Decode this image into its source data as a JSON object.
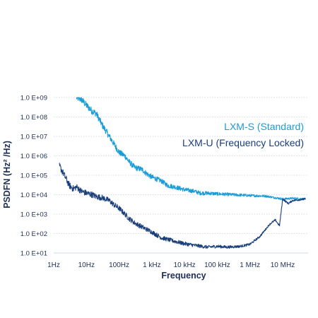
{
  "chart_data": {
    "type": "line",
    "x_scale": "log",
    "y_scale": "log",
    "xlabel": "Frequency",
    "ylabel": "PSDFN (Hz² /Hz)",
    "xlim": [
      1,
      60000000
    ],
    "ylim": [
      10,
      1000000000
    ],
    "x_ticks": [
      {
        "value": 1,
        "label": "1Hz"
      },
      {
        "value": 10,
        "label": "10Hz"
      },
      {
        "value": 100,
        "label": "100Hz"
      },
      {
        "value": 1000,
        "label": "1 kHz"
      },
      {
        "value": 10000,
        "label": "10 kHz"
      },
      {
        "value": 100000,
        "label": "100 kHz"
      },
      {
        "value": 1000000,
        "label": "1 MHz"
      },
      {
        "value": 10000000,
        "label": "10 MHz"
      }
    ],
    "y_ticks": [
      {
        "value": 10,
        "label": "1.0 E+01"
      },
      {
        "value": 100,
        "label": "1.0 E+02"
      },
      {
        "value": 1000,
        "label": "1.0 E+03"
      },
      {
        "value": 10000,
        "label": "1.0 E+04"
      },
      {
        "value": 100000,
        "label": "1.0 E+05"
      },
      {
        "value": 1000000,
        "label": "1.0 E+06"
      },
      {
        "value": 10000000,
        "label": "1.0 E+07"
      },
      {
        "value": 100000000,
        "label": "1.0 E+08"
      },
      {
        "value": 1000000000,
        "label": "1.0 E+09"
      }
    ],
    "grid": "horizontal dotted",
    "legend_position": "top-right",
    "series": [
      {
        "name": "LXM-S (Standard)",
        "color": "#1a9cd8",
        "points": [
          [
            5,
            1000000000
          ],
          [
            7,
            800000000
          ],
          [
            10,
            400000000
          ],
          [
            15,
            200000000
          ],
          [
            20,
            150000000
          ],
          [
            30,
            40000000
          ],
          [
            50,
            10000000
          ],
          [
            70,
            4000000
          ],
          [
            100,
            1500000
          ],
          [
            150,
            1000000
          ],
          [
            200,
            500000
          ],
          [
            300,
            250000
          ],
          [
            500,
            200000
          ],
          [
            700,
            120000
          ],
          [
            1000,
            80000
          ],
          [
            2000,
            50000
          ],
          [
            3000,
            30000
          ],
          [
            5000,
            25000
          ],
          [
            10000,
            18000
          ],
          [
            20000,
            15000
          ],
          [
            30000,
            12000
          ],
          [
            50000,
            12000
          ],
          [
            100000,
            11000
          ],
          [
            300000,
            10000
          ],
          [
            1000000,
            9000
          ],
          [
            3000000,
            8500
          ],
          [
            10000000,
            6000
          ],
          [
            20000000,
            6500
          ],
          [
            50000000,
            6000
          ]
        ]
      },
      {
        "name": "LXM-U (Frequency Locked)",
        "color": "#1a3f7a",
        "points": [
          [
            1.5,
            300000
          ],
          [
            2,
            120000
          ],
          [
            3,
            30000
          ],
          [
            4,
            20000
          ],
          [
            5,
            25000
          ],
          [
            7,
            15000
          ],
          [
            10,
            12000
          ],
          [
            15,
            10000
          ],
          [
            20,
            8000
          ],
          [
            30,
            7000
          ],
          [
            50,
            5000
          ],
          [
            70,
            3000
          ],
          [
            100,
            2000
          ],
          [
            150,
            1000
          ],
          [
            200,
            600
          ],
          [
            300,
            350
          ],
          [
            500,
            220
          ],
          [
            1000,
            120
          ],
          [
            2000,
            60
          ],
          [
            5000,
            40
          ],
          [
            10000,
            30
          ],
          [
            20000,
            25
          ],
          [
            50000,
            20
          ],
          [
            100000,
            22
          ],
          [
            200000,
            20
          ],
          [
            500000,
            22
          ],
          [
            1000000,
            28
          ],
          [
            2000000,
            70
          ],
          [
            4000000,
            300
          ],
          [
            6000000,
            500
          ],
          [
            8000000,
            250
          ],
          [
            10000000,
            6000
          ],
          [
            15000000,
            3500
          ],
          [
            20000000,
            5000
          ],
          [
            50000000,
            6000
          ]
        ]
      }
    ]
  }
}
